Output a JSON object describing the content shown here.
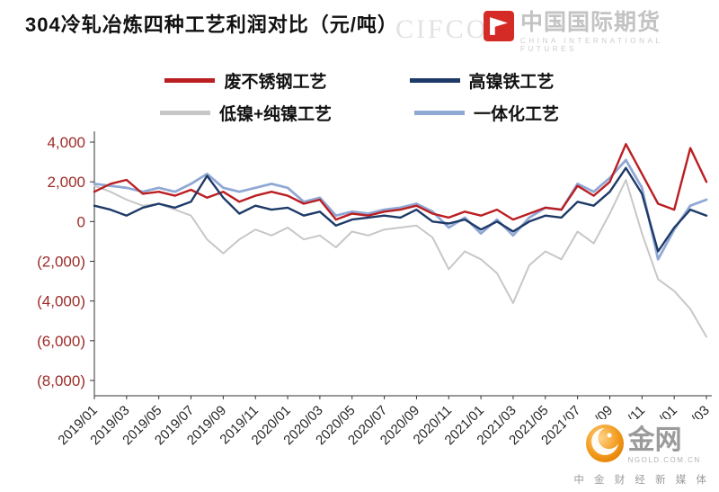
{
  "title": "304冷轧冶炼四种工艺利润对比（元/吨）",
  "watermark_top": {
    "faint": "CIFCO",
    "cn": "中国国际期货",
    "en": "CHINA INTERNATIONAL FUTURES"
  },
  "watermark_bottom": {
    "site": "金网",
    "domain": "NGOLD.COM.CN",
    "tagline": "中 金 财 经 新 媒 体"
  },
  "chart_data": {
    "type": "line",
    "title": "304冷轧冶炼四种工艺利润对比（元/吨）",
    "ylim": [
      -8000,
      4000
    ],
    "y_ticks": [
      4000,
      2000,
      0,
      -2000,
      -4000,
      -6000,
      -8000
    ],
    "y_tick_labels": [
      "4,000",
      "2,000",
      "0",
      "(2,000)",
      "(4,000)",
      "(6,000)",
      "(8,000)"
    ],
    "x_label_step": 2,
    "grid": false,
    "legend_position": "top",
    "colors": {
      "y_label": "#9c2b28",
      "x_label": "#262626",
      "axis": "#333333"
    },
    "months": [
      "2019/01",
      "2019/02",
      "2019/03",
      "2019/04",
      "2019/05",
      "2019/06",
      "2019/07",
      "2019/08",
      "2019/09",
      "2019/10",
      "2019/11",
      "2019/12",
      "2020/01",
      "2020/02",
      "2020/03",
      "2020/04",
      "2020/05",
      "2020/06",
      "2020/07",
      "2020/08",
      "2020/09",
      "2020/10",
      "2020/11",
      "2020/12",
      "2021/01",
      "2021/02",
      "2021/03",
      "2021/04",
      "2021/05",
      "2021/06",
      "2021/07",
      "2021/08",
      "2021/09",
      "2021/10",
      "2021/11",
      "2021/12",
      "2022/01",
      "2022/02",
      "2022/03"
    ],
    "series": [
      {
        "name": "废不锈钢工艺",
        "color": "#bb1e22",
        "values": [
          1500,
          1900,
          2100,
          1400,
          1500,
          1300,
          1600,
          1200,
          1500,
          1000,
          1300,
          1500,
          1300,
          900,
          1100,
          100,
          400,
          300,
          500,
          600,
          800,
          400,
          200,
          500,
          300,
          600,
          100,
          400,
          700,
          600,
          1800,
          1300,
          2000,
          3900,
          2400,
          900,
          600,
          3700,
          2000
        ]
      },
      {
        "name": "高镍铁工艺",
        "color": "#1e3a68",
        "values": [
          800,
          600,
          300,
          700,
          900,
          700,
          1000,
          2300,
          1200,
          400,
          800,
          600,
          700,
          300,
          500,
          -200,
          100,
          200,
          300,
          200,
          600,
          0,
          -100,
          100,
          -400,
          0,
          -500,
          0,
          300,
          200,
          1000,
          800,
          1500,
          2700,
          1400,
          -1500,
          -300,
          600,
          300
        ]
      },
      {
        "name": "低镍+纯镍工艺",
        "color": "#c7c7c7",
        "values": [
          1800,
          1500,
          1100,
          800,
          900,
          600,
          300,
          -900,
          -1600,
          -900,
          -400,
          -700,
          -300,
          -900,
          -700,
          -1300,
          -500,
          -700,
          -400,
          -300,
          -200,
          -800,
          -2400,
          -1500,
          -1900,
          -2600,
          -4100,
          -2200,
          -1500,
          -1900,
          -500,
          -1100,
          400,
          2100,
          -600,
          -2900,
          -3500,
          -4400,
          -5800
        ]
      },
      {
        "name": "一体化工艺",
        "color": "#90a8d4",
        "values": [
          1900,
          1800,
          1700,
          1500,
          1700,
          1500,
          1900,
          2400,
          1700,
          1500,
          1700,
          1900,
          1700,
          1000,
          1200,
          300,
          500,
          400,
          600,
          700,
          900,
          500,
          -300,
          200,
          -600,
          100,
          -700,
          200,
          700,
          600,
          1900,
          1500,
          2200,
          3100,
          1700,
          -1900,
          -400,
          800,
          1100
        ]
      }
    ]
  }
}
